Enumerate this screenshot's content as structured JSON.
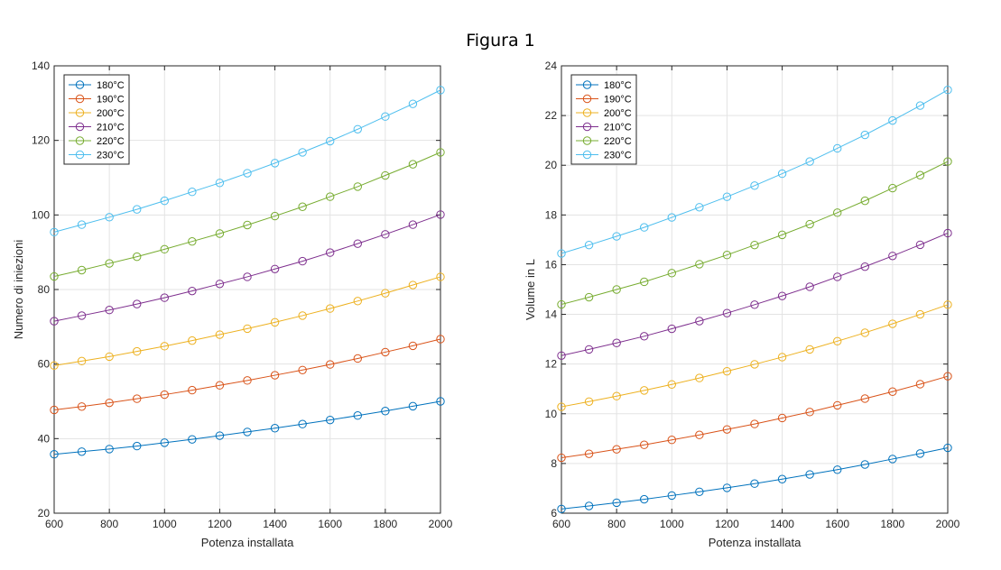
{
  "figure_title": "Figura 1",
  "chart_data": [
    {
      "type": "line",
      "xlabel": "Potenza installata",
      "ylabel": "Numero di iniezioni",
      "xlim": [
        600,
        2000
      ],
      "ylim": [
        20,
        140
      ],
      "xticks": [
        "600",
        "800",
        "1000",
        "1200",
        "1400",
        "1600",
        "1800",
        "2000"
      ],
      "yticks": [
        "20",
        "40",
        "60",
        "80",
        "100",
        "120",
        "140"
      ],
      "grid": true,
      "legend_position": "top-left",
      "marker": "circle",
      "x": [
        600,
        700,
        800,
        900,
        1000,
        1100,
        1200,
        1300,
        1400,
        1500,
        1600,
        1700,
        1800,
        1900,
        2000
      ],
      "series": [
        {
          "name": "180°C",
          "color": "#0072BD",
          "values": [
            35.8,
            36.5,
            37.2,
            38.0,
            38.9,
            39.8,
            40.8,
            41.8,
            42.8,
            43.9,
            45.0,
            46.2,
            47.4,
            48.7,
            50.0
          ]
        },
        {
          "name": "190°C",
          "color": "#D95319",
          "values": [
            47.7,
            48.6,
            49.6,
            50.7,
            51.8,
            53.0,
            54.3,
            55.6,
            57.0,
            58.4,
            59.9,
            61.5,
            63.2,
            64.9,
            66.7
          ]
        },
        {
          "name": "200°C",
          "color": "#EDB120",
          "values": [
            59.6,
            60.8,
            62.0,
            63.4,
            64.8,
            66.3,
            67.9,
            69.5,
            71.2,
            73.0,
            74.9,
            76.9,
            79.0,
            81.2,
            83.4
          ]
        },
        {
          "name": "210°C",
          "color": "#7E2F8E",
          "values": [
            71.5,
            73.0,
            74.5,
            76.1,
            77.8,
            79.6,
            81.5,
            83.4,
            85.5,
            87.6,
            89.9,
            92.3,
            94.8,
            97.4,
            100.1
          ]
        },
        {
          "name": "220°C",
          "color": "#77AC30",
          "values": [
            83.5,
            85.2,
            87.0,
            88.8,
            90.8,
            92.9,
            95.0,
            97.3,
            99.7,
            102.2,
            104.9,
            107.6,
            110.6,
            113.6,
            116.8
          ]
        },
        {
          "name": "230°C",
          "color": "#4DBEEE",
          "values": [
            95.4,
            97.4,
            99.4,
            101.5,
            103.8,
            106.2,
            108.6,
            111.2,
            113.9,
            116.8,
            119.8,
            123.0,
            126.4,
            129.8,
            133.5
          ]
        }
      ]
    },
    {
      "type": "line",
      "xlabel": "Potenza installata",
      "ylabel": "Volume in L",
      "xlim": [
        600,
        2000
      ],
      "ylim": [
        6,
        24
      ],
      "xticks": [
        "600",
        "800",
        "1000",
        "1200",
        "1400",
        "1600",
        "1800",
        "2000"
      ],
      "yticks": [
        "6",
        "8",
        "10",
        "12",
        "14",
        "16",
        "18",
        "20",
        "22",
        "24"
      ],
      "grid": true,
      "legend_position": "top-left",
      "marker": "circle",
      "x": [
        600,
        700,
        800,
        900,
        1000,
        1100,
        1200,
        1300,
        1400,
        1500,
        1600,
        1700,
        1800,
        1900,
        2000
      ],
      "series": [
        {
          "name": "180°C",
          "color": "#0072BD",
          "values": [
            6.17,
            6.29,
            6.42,
            6.56,
            6.71,
            6.86,
            7.02,
            7.19,
            7.37,
            7.56,
            7.75,
            7.96,
            8.18,
            8.4,
            8.63
          ]
        },
        {
          "name": "190°C",
          "color": "#D95319",
          "values": [
            8.23,
            8.39,
            8.57,
            8.75,
            8.95,
            9.15,
            9.37,
            9.59,
            9.83,
            10.07,
            10.34,
            10.61,
            10.89,
            11.19,
            11.51
          ]
        },
        {
          "name": "200°C",
          "color": "#EDB120",
          "values": [
            10.28,
            10.49,
            10.71,
            10.94,
            11.18,
            11.44,
            11.71,
            11.99,
            12.28,
            12.59,
            12.92,
            13.26,
            13.62,
            14.0,
            14.39
          ]
        },
        {
          "name": "210°C",
          "color": "#7E2F8E",
          "values": [
            12.34,
            12.59,
            12.85,
            13.12,
            13.42,
            13.73,
            14.05,
            14.39,
            14.74,
            15.11,
            15.51,
            15.92,
            16.35,
            16.8,
            17.27
          ]
        },
        {
          "name": "220°C",
          "color": "#77AC30",
          "values": [
            14.4,
            14.69,
            15.0,
            15.31,
            15.66,
            16.02,
            16.39,
            16.79,
            17.2,
            17.63,
            18.09,
            18.57,
            19.08,
            19.6,
            20.15
          ]
        },
        {
          "name": "230°C",
          "color": "#4DBEEE",
          "values": [
            16.45,
            16.79,
            17.14,
            17.5,
            17.9,
            18.31,
            18.73,
            19.18,
            19.66,
            20.15,
            20.68,
            21.22,
            21.8,
            22.4,
            23.03
          ]
        }
      ]
    }
  ]
}
